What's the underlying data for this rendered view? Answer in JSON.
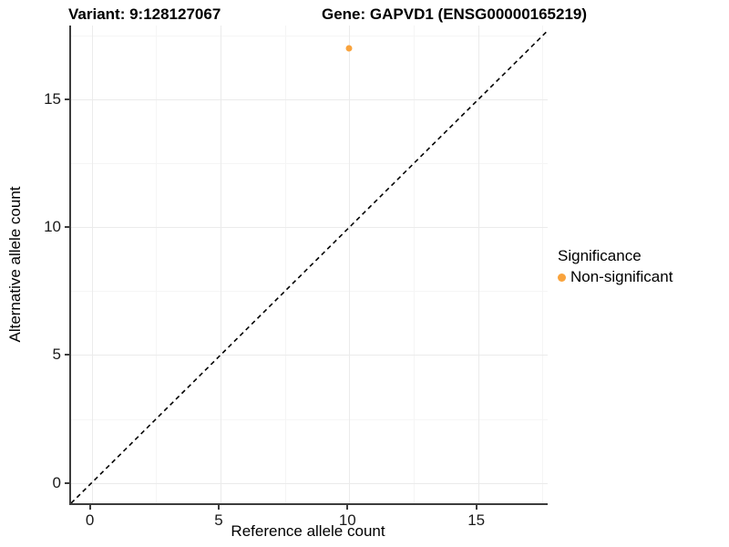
{
  "chart_data": {
    "type": "scatter",
    "titles": {
      "left": "Variant: 9:128127067",
      "right": "Gene: GAPVD1 (ENSG00000165219)"
    },
    "xlabel": "Reference allele count",
    "ylabel": "Alternative allele count",
    "xlim": [
      -0.8,
      17.7
    ],
    "ylim": [
      -0.8,
      17.9
    ],
    "x_ticks": [
      0,
      5,
      10,
      15
    ],
    "y_ticks": [
      0,
      5,
      10,
      15
    ],
    "x_minor_ticks": [
      2.5,
      7.5,
      12.5,
      17.5
    ],
    "y_minor_ticks": [
      2.5,
      7.5,
      12.5,
      17.5
    ],
    "grid": true,
    "legend_position": "right",
    "points": [
      {
        "x": 10,
        "y": 17,
        "series": "Non-significant"
      }
    ],
    "reference_line": {
      "type": "identity",
      "style": "dashed",
      "from": [
        -0.8,
        -0.8
      ],
      "to": [
        17.7,
        17.7
      ]
    },
    "legend": {
      "title": "Significance",
      "entries": [
        {
          "label": "Non-significant",
          "color": "#F9A33C"
        }
      ]
    }
  },
  "colors": {
    "point": "#F9A33C",
    "grid_major": "#ebebeb",
    "grid_minor": "#f5f5f5",
    "axis_line": "#3c3c3c",
    "dashed_line": "#000000",
    "background": "#ffffff"
  }
}
